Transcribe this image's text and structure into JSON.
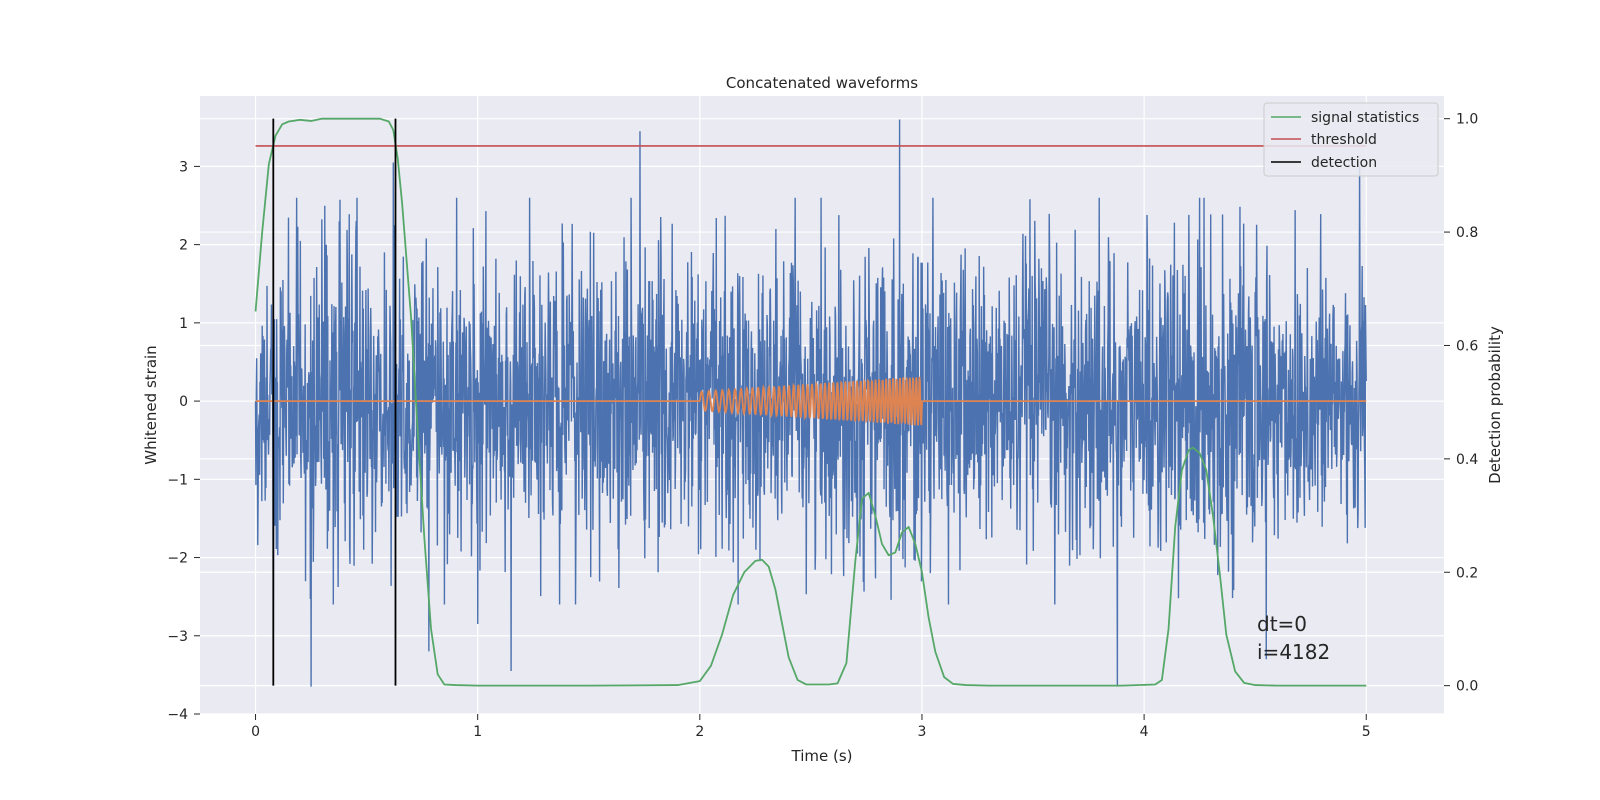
{
  "chart_data": {
    "type": "line",
    "title": "Concatenated waveforms",
    "xlabel": "Time (s)",
    "ylabel_left": "Whitened strain",
    "ylabel_right": "Detection probability",
    "xlim": [
      -0.25,
      5.35
    ],
    "ylim_left": [
      -4.0,
      3.9
    ],
    "ylim_right": [
      -0.05,
      1.04
    ],
    "x_ticks": [
      0,
      1,
      2,
      3,
      4,
      5
    ],
    "y_ticks_left": [
      -4,
      -3,
      -2,
      -1,
      0,
      1,
      2,
      3
    ],
    "y_ticks_right": [
      0.0,
      0.2,
      0.4,
      0.6,
      0.8,
      1.0
    ],
    "x_tick_labels": [
      "0",
      "1",
      "2",
      "3",
      "4",
      "5"
    ],
    "y_tick_labels_left": [
      "−4",
      "−3",
      "−2",
      "−1",
      "0",
      "1",
      "2",
      "3"
    ],
    "y_tick_labels_right": [
      "0.0",
      "0.2",
      "0.4",
      "0.6",
      "0.8",
      "1.0"
    ],
    "grid": true,
    "legend_position": "top-right",
    "series": [
      {
        "name": "",
        "axis": "left",
        "kind": "noise",
        "color": "#4c72b0",
        "x_range": [
          0,
          5
        ],
        "typical_abs_range": [
          1.6,
          2.2
        ],
        "notable_peaks": [
          {
            "x": 1.73,
            "y": 3.45
          },
          {
            "x": 2.9,
            "y": 3.6
          },
          {
            "x": 0.62,
            "y": 3.05
          },
          {
            "x": 4.97,
            "y": 3.0
          },
          {
            "x": 0.25,
            "y": -3.65
          },
          {
            "x": 3.88,
            "y": -3.65
          },
          {
            "x": 4.55,
            "y": -3.3
          },
          {
            "x": 0.78,
            "y": -3.2
          },
          {
            "x": 0.08,
            "y": -2.9
          },
          {
            "x": 1.0,
            "y": -2.85
          },
          {
            "x": 1.15,
            "y": -3.45
          }
        ]
      },
      {
        "name": "",
        "axis": "left",
        "kind": "chirp",
        "color": "#dd8452",
        "x_range": [
          0,
          5
        ],
        "chirp_start": 2.0,
        "chirp_end": 3.0,
        "amplitude_start": 0.12,
        "amplitude_end": 0.32,
        "freq_start": 30,
        "freq_end": 70
      },
      {
        "name": "signal statistics",
        "axis": "right",
        "color": "#55a868",
        "x": [
          0.0,
          0.03,
          0.06,
          0.09,
          0.12,
          0.15,
          0.2,
          0.25,
          0.3,
          0.35,
          0.4,
          0.5,
          0.56,
          0.6,
          0.62,
          0.64,
          0.66,
          0.7,
          0.73,
          0.76,
          0.79,
          0.82,
          0.85,
          0.9,
          1.0,
          1.5,
          1.9,
          2.0,
          2.05,
          2.1,
          2.15,
          2.2,
          2.25,
          2.28,
          2.31,
          2.34,
          2.37,
          2.4,
          2.44,
          2.48,
          2.52,
          2.58,
          2.62,
          2.66,
          2.7,
          2.73,
          2.76,
          2.79,
          2.82,
          2.85,
          2.88,
          2.91,
          2.94,
          2.97,
          3.0,
          3.03,
          3.06,
          3.1,
          3.14,
          3.2,
          3.3,
          3.6,
          3.9,
          4.05,
          4.08,
          4.11,
          4.14,
          4.17,
          4.2,
          4.22,
          4.25,
          4.28,
          4.31,
          4.34,
          4.37,
          4.41,
          4.45,
          4.5,
          4.6,
          5.0
        ],
        "values": [
          0.66,
          0.8,
          0.92,
          0.97,
          0.99,
          0.995,
          0.998,
          0.996,
          1.0,
          1.0,
          1.0,
          1.0,
          1.0,
          0.995,
          0.98,
          0.93,
          0.85,
          0.65,
          0.45,
          0.26,
          0.1,
          0.02,
          0.002,
          0.001,
          0.0,
          0.0,
          0.001,
          0.008,
          0.035,
          0.09,
          0.16,
          0.2,
          0.22,
          0.222,
          0.21,
          0.17,
          0.11,
          0.05,
          0.01,
          0.002,
          0.002,
          0.002,
          0.004,
          0.04,
          0.22,
          0.33,
          0.34,
          0.3,
          0.25,
          0.23,
          0.235,
          0.27,
          0.28,
          0.25,
          0.2,
          0.12,
          0.06,
          0.015,
          0.003,
          0.001,
          0.0,
          0.0,
          0.0,
          0.002,
          0.01,
          0.1,
          0.28,
          0.38,
          0.415,
          0.42,
          0.41,
          0.38,
          0.3,
          0.2,
          0.09,
          0.025,
          0.005,
          0.001,
          0.0,
          0.0
        ]
      },
      {
        "name": "threshold",
        "axis": "right",
        "color": "#c44e52",
        "x": [
          0.0,
          5.0
        ],
        "values": [
          0.952,
          0.952
        ]
      },
      {
        "name": "detection",
        "axis": "right",
        "color": "#000000",
        "kind": "vertical-lines",
        "x": [
          0.08,
          0.63
        ],
        "y_range": [
          0.0,
          1.0
        ]
      }
    ],
    "annotations": [
      "dt=0",
      "i=4182"
    ]
  }
}
